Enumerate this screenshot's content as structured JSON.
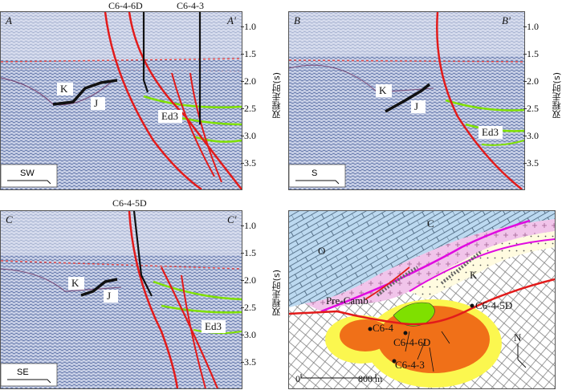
{
  "panels": [
    {
      "left_label": "A",
      "right_label": "A'",
      "direction": "SW",
      "wells": [
        "C6-4-6D",
        "C6-4-3"
      ],
      "units": [
        "K",
        "J",
        "Ed3"
      ]
    },
    {
      "left_label": "B",
      "right_label": "B'",
      "direction": "S",
      "units": [
        "K",
        "J",
        "Ed3"
      ]
    },
    {
      "left_label": "C",
      "right_label": "C'",
      "direction": "SE",
      "wells": [
        "C6-4-5D"
      ],
      "units": [
        "K",
        "J",
        "Ed3"
      ]
    }
  ],
  "time_axis": {
    "title": "双程走时(s)",
    "ticks": [
      "1.0",
      "1.5",
      "2.0",
      "2.5",
      "3.0",
      "3.5"
    ]
  },
  "map": {
    "labels": [
      "O",
      "C",
      "Pre-Camb",
      "K"
    ],
    "wells": [
      "C6-4-5D",
      "C6-4-6D",
      "C6-4-3",
      "C6-4"
    ],
    "north": "N",
    "scale_start": "0",
    "scale_end": "800 m"
  },
  "colors": {
    "fault": "#e21b1b",
    "horizon_red": "#e24848",
    "green": "#7fe000",
    "seismic_blue": "#5e73a8",
    "map_blue": "#bcd9f0",
    "map_pink": "#f1c4ea",
    "map_orange": "#f07018",
    "map_yellow": "#fbf74f",
    "map_magenta": "#e00ae0"
  }
}
